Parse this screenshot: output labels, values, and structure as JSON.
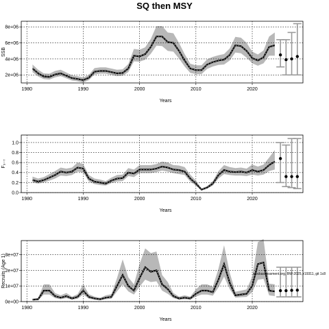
{
  "figure": {
    "title": "SQ then MSY",
    "annotation": "stockassessment.org, BW-2025, r19311, git 1c8"
  },
  "chart_data": [
    {
      "type": "line",
      "ylabel": "SSB",
      "xlabel": "Years",
      "xlim": [
        1979,
        2029
      ],
      "ylim": [
        1000000,
        8700000
      ],
      "xticks": [
        1980,
        1990,
        2000,
        2010,
        2020
      ],
      "xtick_labels": [
        "1980",
        "1990",
        "2000",
        "2010",
        "2020"
      ],
      "yticks": [
        2000000,
        4000000,
        6000000,
        8000000
      ],
      "ytick_labels": [
        "2e+06",
        "4e+06",
        "6e+06",
        "8e+06"
      ],
      "grid": true,
      "x": [
        1981,
        1982,
        1983,
        1984,
        1985,
        1986,
        1987,
        1988,
        1989,
        1990,
        1991,
        1992,
        1993,
        1994,
        1995,
        1996,
        1997,
        1998,
        1999,
        2000,
        2001,
        2002,
        2003,
        2004,
        2005,
        2006,
        2007,
        2008,
        2009,
        2010,
        2011,
        2012,
        2013,
        2014,
        2015,
        2016,
        2017,
        2018,
        2019,
        2020,
        2021,
        2022,
        2023,
        2024
      ],
      "estimate": [
        2800000,
        2200000,
        1800000,
        1750000,
        2050000,
        2200000,
        1900000,
        1600000,
        1500000,
        1350000,
        1650000,
        2400000,
        2500000,
        2500000,
        2350000,
        2200000,
        2250000,
        2800000,
        4400000,
        4300000,
        4600000,
        5500000,
        6800000,
        6800000,
        6100000,
        6000000,
        5000000,
        3800000,
        2800000,
        2600000,
        2600000,
        3300000,
        3600000,
        3800000,
        3900000,
        4500000,
        5700000,
        5600000,
        5000000,
        4100000,
        3800000,
        4200000,
        5500000,
        5700000
      ],
      "lower": [
        2350000,
        1800000,
        1480000,
        1420000,
        1700000,
        1850000,
        1580000,
        1300000,
        1200000,
        1050000,
        1350000,
        2050000,
        2150000,
        2150000,
        2000000,
        1850000,
        1900000,
        2350000,
        3700000,
        3650000,
        3900000,
        4650000,
        5650000,
        5600000,
        5000000,
        4900000,
        4050000,
        3050000,
        2250000,
        2100000,
        2100000,
        2750000,
        3050000,
        3250000,
        3300000,
        3800000,
        4800000,
        4700000,
        4150000,
        3450000,
        3150000,
        3450000,
        4400000,
        4400000
      ],
      "upper": [
        3300000,
        2650000,
        2200000,
        2150000,
        2500000,
        2650000,
        2300000,
        1950000,
        1850000,
        1700000,
        2000000,
        2850000,
        2950000,
        2950000,
        2800000,
        2650000,
        2700000,
        3350000,
        5250000,
        5150000,
        5450000,
        6500000,
        8100000,
        8100000,
        7300000,
        7200000,
        6000000,
        4600000,
        3400000,
        3200000,
        3200000,
        3950000,
        4250000,
        4450000,
        4600000,
        5300000,
        6750000,
        6650000,
        6000000,
        4900000,
        4550000,
        5050000,
        6800000,
        7300000
      ],
      "forecast": {
        "x": [
          2025,
          2026,
          2027,
          2028
        ],
        "median": [
          4500000,
          3900000,
          4000000,
          4300000
        ],
        "lower": [
          3000000,
          2000000,
          2000000,
          2000000
        ],
        "upper": [
          6400000,
          6400000,
          7300000,
          8400000
        ]
      }
    },
    {
      "type": "line",
      "ylabel": "F₃₋₇",
      "xlabel": "Years",
      "xlim": [
        1979,
        2029
      ],
      "ylim": [
        0,
        1.15
      ],
      "xticks": [
        1980,
        1990,
        2000,
        2010,
        2020
      ],
      "xtick_labels": [
        "1980",
        "1990",
        "2000",
        "2010",
        "2020"
      ],
      "yticks": [
        0,
        0.2,
        0.4,
        0.6,
        0.8,
        1.0
      ],
      "ytick_labels": [
        "0.0",
        "0.2",
        "0.4",
        "0.6",
        "0.8",
        "1.0"
      ],
      "grid": true,
      "x": [
        1981,
        1982,
        1983,
        1984,
        1985,
        1986,
        1987,
        1988,
        1989,
        1990,
        1991,
        1992,
        1993,
        1994,
        1995,
        1996,
        1997,
        1998,
        1999,
        2000,
        2001,
        2002,
        2003,
        2004,
        2005,
        2006,
        2007,
        2008,
        2009,
        2010,
        2011,
        2012,
        2013,
        2014,
        2015,
        2016,
        2017,
        2018,
        2019,
        2020,
        2021,
        2022,
        2023,
        2024
      ],
      "estimate": [
        0.25,
        0.22,
        0.25,
        0.3,
        0.35,
        0.42,
        0.4,
        0.42,
        0.5,
        0.48,
        0.28,
        0.22,
        0.2,
        0.18,
        0.24,
        0.28,
        0.29,
        0.4,
        0.38,
        0.46,
        0.46,
        0.46,
        0.48,
        0.52,
        0.5,
        0.46,
        0.45,
        0.42,
        0.28,
        0.18,
        0.06,
        0.1,
        0.18,
        0.35,
        0.45,
        0.42,
        0.41,
        0.42,
        0.4,
        0.45,
        0.42,
        0.45,
        0.55,
        0.62
      ],
      "lower": [
        0.2,
        0.18,
        0.2,
        0.24,
        0.28,
        0.34,
        0.33,
        0.35,
        0.42,
        0.4,
        0.22,
        0.17,
        0.15,
        0.14,
        0.19,
        0.22,
        0.23,
        0.33,
        0.31,
        0.39,
        0.39,
        0.39,
        0.41,
        0.44,
        0.42,
        0.39,
        0.37,
        0.35,
        0.22,
        0.14,
        0.04,
        0.08,
        0.14,
        0.28,
        0.37,
        0.35,
        0.34,
        0.34,
        0.33,
        0.36,
        0.34,
        0.36,
        0.43,
        0.46
      ],
      "upper": [
        0.32,
        0.28,
        0.31,
        0.37,
        0.43,
        0.5,
        0.48,
        0.5,
        0.6,
        0.57,
        0.35,
        0.28,
        0.26,
        0.23,
        0.3,
        0.35,
        0.36,
        0.49,
        0.46,
        0.55,
        0.55,
        0.55,
        0.57,
        0.62,
        0.6,
        0.55,
        0.54,
        0.51,
        0.36,
        0.24,
        0.08,
        0.13,
        0.23,
        0.43,
        0.55,
        0.51,
        0.49,
        0.5,
        0.48,
        0.56,
        0.52,
        0.56,
        0.7,
        0.85
      ],
      "forecast": {
        "x": [
          2025,
          2026,
          2027,
          2028
        ],
        "median": [
          0.68,
          0.32,
          0.32,
          0.32
        ],
        "lower": [
          0.2,
          0.12,
          0.1,
          0.08
        ],
        "upper": [
          1.0,
          0.95,
          1.08,
          1.08
        ]
      }
    },
    {
      "type": "line",
      "ylabel": "Recruits (Age 1)",
      "xlabel": "Years",
      "xlim": [
        1979,
        2029
      ],
      "ylim": [
        0,
        39000000
      ],
      "xticks": [
        1980,
        1990,
        2000,
        2010,
        2020
      ],
      "xtick_labels": [
        "1980",
        "1990",
        "2000",
        "2010",
        "2020"
      ],
      "yticks": [
        0,
        10000000,
        20000000,
        30000000
      ],
      "ytick_labels": [
        "0e+00",
        "1e+07",
        "2e+07",
        "3e+07"
      ],
      "grid": true,
      "x": [
        1981,
        1982,
        1983,
        1984,
        1985,
        1986,
        1987,
        1988,
        1989,
        1990,
        1991,
        1992,
        1993,
        1994,
        1995,
        1996,
        1997,
        1998,
        1999,
        2000,
        2001,
        2002,
        2003,
        2004,
        2005,
        2006,
        2007,
        2008,
        2009,
        2010,
        2011,
        2012,
        2013,
        2014,
        2015,
        2016,
        2017,
        2018,
        2019,
        2020,
        2021,
        2022,
        2023,
        2024
      ],
      "estimate": [
        1200000,
        1500000,
        7000000,
        7000000,
        3500000,
        2500000,
        3500000,
        2000000,
        3000000,
        7000000,
        3000000,
        2000000,
        1500000,
        2500000,
        3000000,
        10000000,
        17000000,
        10000000,
        7000000,
        15000000,
        22000000,
        19000000,
        20000000,
        11000000,
        8000000,
        3500000,
        2000000,
        2500000,
        2000000,
        5000000,
        7000000,
        7000000,
        6000000,
        14000000,
        24000000,
        12000000,
        4000000,
        4500000,
        5000000,
        10000000,
        24000000,
        25000000,
        7000000,
        6500000
      ],
      "lower": [
        700000,
        900000,
        4500000,
        4500000,
        2200000,
        1500000,
        2200000,
        1200000,
        1800000,
        4500000,
        1800000,
        1200000,
        900000,
        1500000,
        1800000,
        6500000,
        11000000,
        6500000,
        4500000,
        9500000,
        14000000,
        12500000,
        13000000,
        7000000,
        5000000,
        2200000,
        1200000,
        1500000,
        1200000,
        3200000,
        4500000,
        4500000,
        3800000,
        9000000,
        16000000,
        8000000,
        2500000,
        2800000,
        3000000,
        6000000,
        14000000,
        14500000,
        4000000,
        3500000
      ],
      "upper": [
        1800000,
        2300000,
        11000000,
        11000000,
        5500000,
        4000000,
        5500000,
        3200000,
        4700000,
        11000000,
        4700000,
        3200000,
        2400000,
        4000000,
        4700000,
        15000000,
        27000000,
        15500000,
        11000000,
        24000000,
        34000000,
        31000000,
        32000000,
        17000000,
        12500000,
        5500000,
        3200000,
        4000000,
        3200000,
        7800000,
        11000000,
        11000000,
        9500000,
        21000000,
        36000000,
        18500000,
        6300000,
        7000000,
        7800000,
        16000000,
        38000000,
        40000000,
        11500000,
        11000000
      ],
      "forecast": {
        "x": [
          2025,
          2026,
          2027,
          2028
        ],
        "median": [
          7000000,
          7000000,
          7200000,
          7300000
        ],
        "lower": [
          3000000,
          3000000,
          3000000,
          3000000
        ],
        "upper": [
          22000000,
          22000000,
          22000000,
          22000000
        ]
      }
    }
  ]
}
